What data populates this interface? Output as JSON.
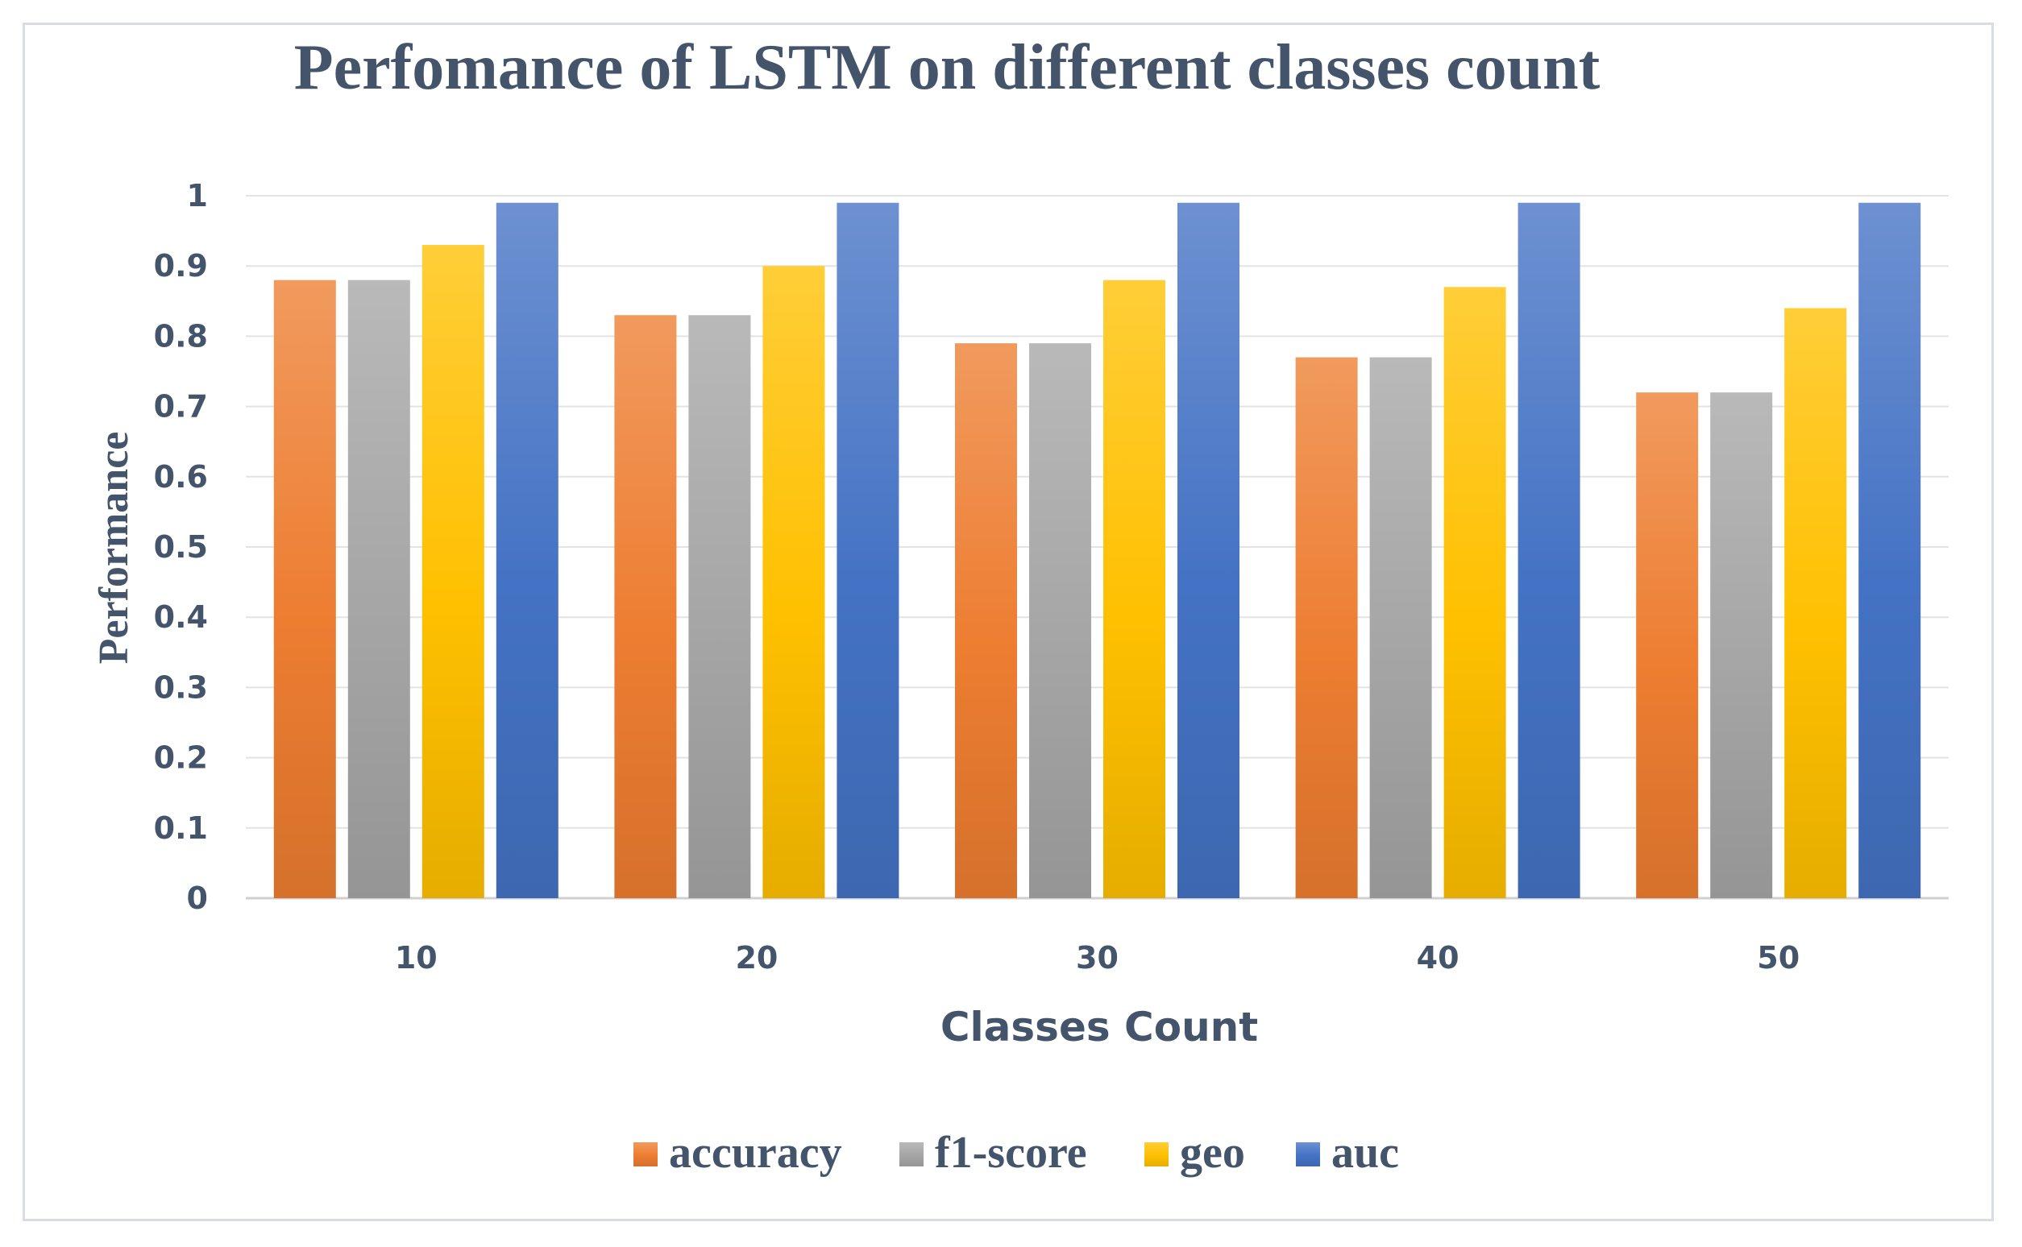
{
  "chart_data": {
    "type": "bar",
    "title": "Perfomance of LSTM on different classes count",
    "xlabel": "Classes Count",
    "ylabel": "Performance",
    "categories": [
      "10",
      "20",
      "30",
      "40",
      "50"
    ],
    "ylim": [
      0,
      1
    ],
    "yticks": [
      "0",
      "0.1",
      "0.2",
      "0.3",
      "0.4",
      "0.5",
      "0.6",
      "0.7",
      "0.8",
      "0.9",
      "1"
    ],
    "grid": true,
    "legend_position": "bottom",
    "series": [
      {
        "name": "accuracy",
        "values": [
          0.88,
          0.83,
          0.79,
          0.77,
          0.72
        ],
        "color": "#ed7d31"
      },
      {
        "name": "f1-score",
        "values": [
          0.88,
          0.83,
          0.79,
          0.77,
          0.72
        ],
        "color": "#a5a5a5"
      },
      {
        "name": "geo",
        "values": [
          0.93,
          0.9,
          0.88,
          0.87,
          0.84
        ],
        "color": "#ffc000"
      },
      {
        "name": "auc",
        "values": [
          0.99,
          0.99,
          0.99,
          0.99,
          0.99
        ],
        "color": "#4472c4"
      }
    ]
  }
}
